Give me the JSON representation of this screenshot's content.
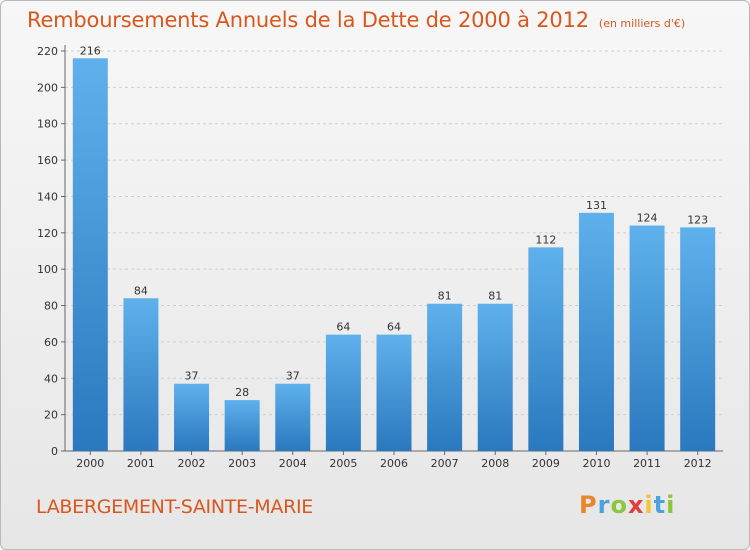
{
  "chart_data": {
    "type": "bar",
    "title": "Remboursements Annuels de la Dette de 2000 à 2012",
    "subtitle": "(en milliers d'€)",
    "categories": [
      "2000",
      "2001",
      "2002",
      "2003",
      "2004",
      "2005",
      "2006",
      "2007",
      "2008",
      "2009",
      "2010",
      "2011",
      "2012"
    ],
    "values": [
      216,
      84,
      37,
      28,
      37,
      64,
      64,
      81,
      81,
      112,
      131,
      124,
      123
    ],
    "ylim": [
      0,
      220
    ],
    "yticks": [
      0,
      20,
      40,
      60,
      80,
      100,
      120,
      140,
      160,
      180,
      200,
      220
    ],
    "grid": true,
    "bar_color": "#3a8fd6"
  },
  "footer": {
    "commune": "LABERGEMENT-SAINTE-MARIE",
    "logo": {
      "letters": [
        "P",
        "r",
        "o",
        "x",
        "i",
        "t",
        "i"
      ],
      "colors": [
        "#e9852b",
        "#4aa3df",
        "#8cc63f",
        "#e23e3e",
        "#f2c531",
        "#4aa3df",
        "#8cc63f"
      ]
    }
  },
  "colors": {
    "accent": "#d9571e"
  }
}
